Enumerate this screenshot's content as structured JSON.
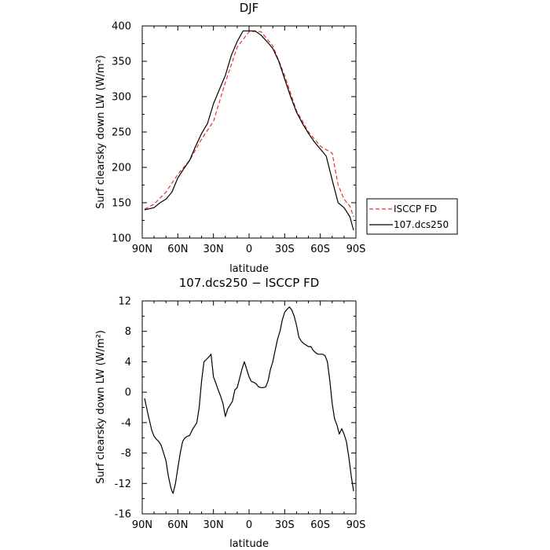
{
  "chart_data": [
    {
      "type": "line",
      "title": "DJF",
      "xlabel": "latitude",
      "ylabel": "Surf clearsky down LW (W/m²)",
      "x_tick_labels": [
        "90N",
        "60N",
        "30N",
        "0",
        "30S",
        "60S",
        "90S"
      ],
      "x_tick_values": [
        90,
        60,
        30,
        0,
        -30,
        -60,
        -90
      ],
      "xlim": [
        90,
        -90
      ],
      "ylim": [
        100,
        400
      ],
      "y_ticks": [
        100,
        150,
        200,
        250,
        300,
        350,
        400
      ],
      "grid": false,
      "legend_position": "right",
      "series": [
        {
          "name": "ISCCP FD",
          "color": "#e8312b",
          "dash": "dashed",
          "x": [
            88,
            80,
            70,
            60,
            50,
            40,
            30,
            20,
            10,
            0,
            -10,
            -20,
            -30,
            -40,
            -50,
            -60,
            -70,
            -75,
            -80,
            -85,
            -88
          ],
          "y": [
            141,
            148,
            165,
            190,
            210,
            240,
            265,
            320,
            370,
            392,
            392,
            372,
            330,
            280,
            250,
            230,
            220,
            175,
            155,
            145,
            130
          ]
        },
        {
          "name": "107.dcs250",
          "color": "#000000",
          "dash": "solid",
          "x": [
            88,
            80,
            75,
            70,
            65,
            60,
            55,
            50,
            45,
            40,
            35,
            30,
            25,
            20,
            15,
            10,
            5,
            0,
            -5,
            -10,
            -15,
            -20,
            -25,
            -30,
            -35,
            -40,
            -45,
            -50,
            -55,
            -60,
            -65,
            -70,
            -75,
            -80,
            -85,
            -88
          ],
          "y": [
            140,
            143,
            150,
            155,
            165,
            185,
            198,
            210,
            230,
            248,
            262,
            290,
            310,
            330,
            358,
            378,
            393,
            393,
            393,
            387,
            378,
            368,
            350,
            325,
            300,
            278,
            262,
            248,
            236,
            226,
            216,
            182,
            150,
            143,
            130,
            111
          ]
        }
      ]
    },
    {
      "type": "line",
      "title": "107.dcs250 − ISCCP FD",
      "xlabel": "latitude",
      "ylabel": "Surf clearsky down LW (W/m²)",
      "x_tick_labels": [
        "90N",
        "60N",
        "30N",
        "0",
        "30S",
        "60S",
        "90S"
      ],
      "x_tick_values": [
        90,
        60,
        30,
        0,
        -30,
        -60,
        -90
      ],
      "xlim": [
        90,
        -90
      ],
      "ylim": [
        -16,
        12
      ],
      "y_ticks": [
        -16,
        -12,
        -8,
        -4,
        0,
        4,
        8,
        12
      ],
      "grid": false,
      "series": [
        {
          "color": "#000000",
          "x": [
            88,
            85,
            82,
            80,
            78,
            76,
            74,
            72,
            70,
            68,
            66,
            65,
            64,
            62,
            60,
            58,
            56,
            54,
            52,
            50,
            48,
            46,
            44,
            42,
            40,
            38,
            36,
            34,
            32,
            30,
            28,
            26,
            24,
            22,
            20,
            18,
            16,
            14,
            12,
            10,
            8,
            6,
            4,
            2,
            0,
            -2,
            -4,
            -6,
            -8,
            -10,
            -12,
            -14,
            -16,
            -18,
            -20,
            -22,
            -24,
            -26,
            -28,
            -30,
            -32,
            -34,
            -36,
            -38,
            -40,
            -42,
            -44,
            -46,
            -48,
            -50,
            -52,
            -54,
            -56,
            -58,
            -60,
            -62,
            -64,
            -66,
            -68,
            -70,
            -72,
            -74,
            -76,
            -78,
            -80,
            -82,
            -84,
            -86,
            -88
          ],
          "y": [
            -0.8,
            -3,
            -5,
            -5.8,
            -6.2,
            -6.5,
            -7,
            -8,
            -9,
            -11,
            -12.5,
            -13,
            -13.3,
            -12,
            -10,
            -8,
            -6.5,
            -6,
            -5.8,
            -5.7,
            -5,
            -4.5,
            -4,
            -2,
            1.5,
            4,
            4.3,
            4.6,
            5,
            2,
            1.2,
            0.3,
            -0.5,
            -1.5,
            -3.2,
            -2.2,
            -1.7,
            -1.2,
            0.3,
            0.6,
            1.8,
            3,
            4,
            3,
            2,
            1.4,
            1.3,
            1.1,
            0.7,
            0.6,
            0.6,
            0.7,
            1.5,
            3,
            4,
            5.5,
            7,
            8,
            9.5,
            10.5,
            10.9,
            11.2,
            10.8,
            10,
            8.8,
            7.2,
            6.7,
            6.4,
            6.2,
            6,
            6,
            5.5,
            5.2,
            5,
            5,
            5,
            4.8,
            4,
            1.5,
            -1.5,
            -3.5,
            -4.3,
            -5.5,
            -4.8,
            -5.5,
            -6.5,
            -8.5,
            -11,
            -13
          ]
        }
      ]
    }
  ]
}
